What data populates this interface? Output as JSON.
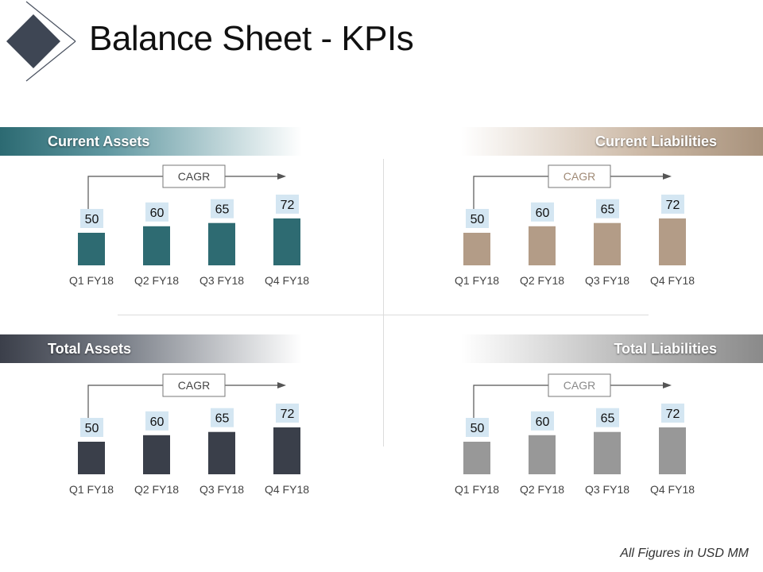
{
  "title": "Balance Sheet - KPIs",
  "footnote": "All Figures in USD MM",
  "colors": {
    "current_assets": "#2e6b72",
    "current_liabilities": "#b39c87",
    "total_assets": "#3a3f4a",
    "total_liabilities": "#989898",
    "label_box": "#d4e6f2",
    "logo_diamond": "#3e4654"
  },
  "panels": {
    "current_assets": {
      "header": "Current Assets",
      "cagr": "CAGR"
    },
    "current_liabilities": {
      "header": "Current Liabilities",
      "cagr": "CAGR"
    },
    "total_assets": {
      "header": "Total Assets",
      "cagr": "CAGR"
    },
    "total_liabilities": {
      "header": "Total Liabilities",
      "cagr": "CAGR"
    }
  },
  "chart_data": [
    {
      "type": "bar",
      "title": "Current Assets",
      "categories": [
        "Q1 FY18",
        "Q2 FY18",
        "Q3 FY18",
        "Q4 FY18"
      ],
      "values": [
        50,
        60,
        65,
        72
      ]
    },
    {
      "type": "bar",
      "title": "Current Liabilities",
      "categories": [
        "Q1 FY18",
        "Q2 FY18",
        "Q3 FY18",
        "Q4 FY18"
      ],
      "values": [
        50,
        60,
        65,
        72
      ]
    },
    {
      "type": "bar",
      "title": "Total Assets",
      "categories": [
        "Q1 FY18",
        "Q2 FY18",
        "Q3 FY18",
        "Q4 FY18"
      ],
      "values": [
        50,
        60,
        65,
        72
      ]
    },
    {
      "type": "bar",
      "title": "Total Liabilities",
      "categories": [
        "Q1 FY18",
        "Q2 FY18",
        "Q3 FY18",
        "Q4 FY18"
      ],
      "values": [
        50,
        60,
        65,
        72
      ]
    }
  ]
}
